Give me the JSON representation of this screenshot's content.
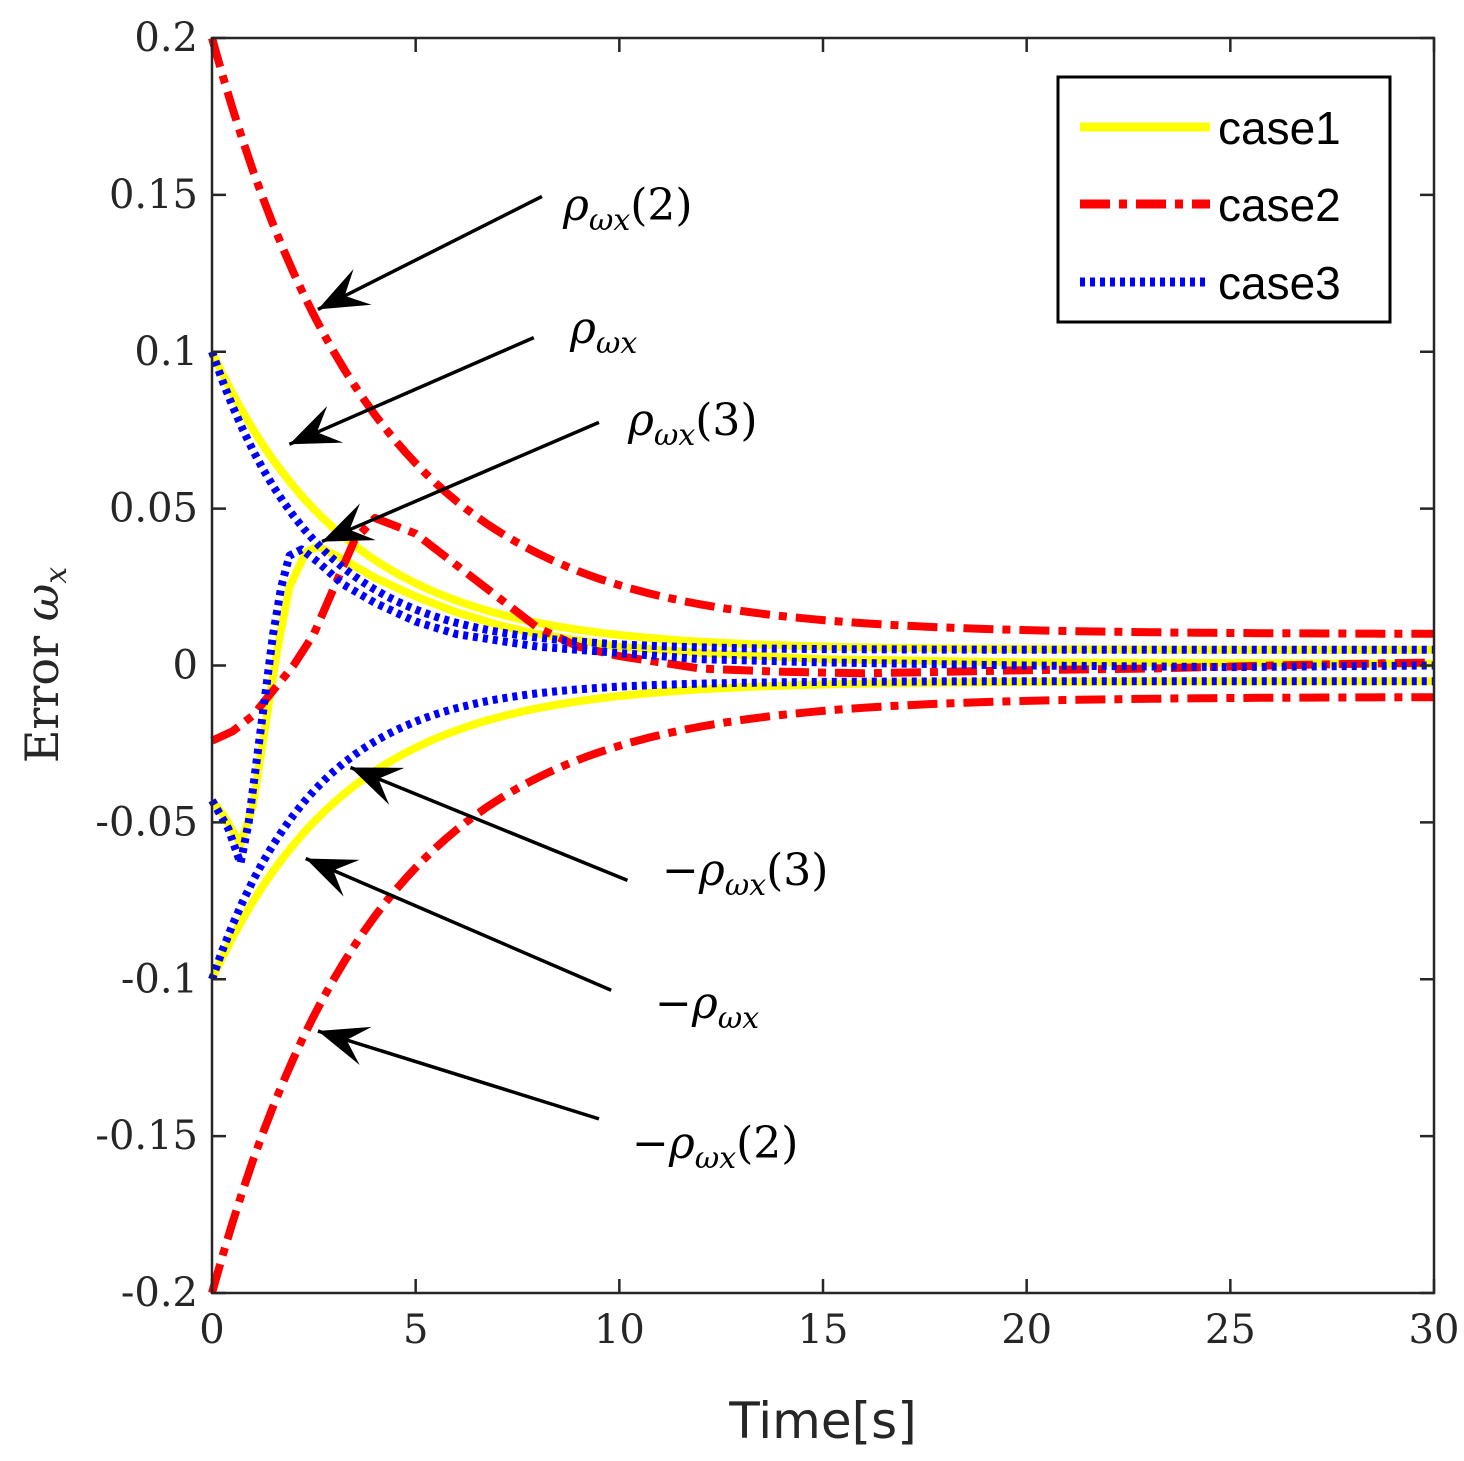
{
  "chart_data": {
    "type": "line",
    "title": "",
    "xlabel": "Time[s]",
    "ylabel": "Error ω_x",
    "ylabel_text": "Error",
    "ylabel_symbol": "ω",
    "ylabel_sub": "x",
    "xlim": [
      0,
      30
    ],
    "ylim": [
      -0.2,
      0.2
    ],
    "xticks": [
      0,
      5,
      10,
      15,
      20,
      25,
      30
    ],
    "xtick_labels": [
      "0",
      "5",
      "10",
      "15",
      "20",
      "25",
      "30"
    ],
    "yticks": [
      0.2,
      0.15,
      0.1,
      0.05,
      0,
      -0.05,
      -0.1,
      -0.15,
      -0.2
    ],
    "ytick_labels": [
      "0.2",
      "0.15",
      "0.1",
      "0.05",
      "0",
      "-0.05",
      "-0.1",
      "-0.15",
      "-0.2"
    ],
    "grid": false,
    "legend_position": "top-right",
    "series": [
      {
        "name": "case1",
        "color": "#ffff00",
        "style": "solid",
        "bound": {
          "rho0": 0.1,
          "rho_inf": 0.005,
          "rate": 0.3
        },
        "error": [
          [
            0,
            -0.043
          ],
          [
            0.3,
            -0.048
          ],
          [
            0.7,
            -0.057
          ],
          [
            1.0,
            -0.045
          ],
          [
            1.3,
            -0.02
          ],
          [
            1.6,
            0.005
          ],
          [
            1.9,
            0.025
          ],
          [
            2.3,
            0.036
          ],
          [
            2.6,
            0.038
          ],
          [
            3.2,
            0.034
          ],
          [
            4,
            0.028
          ],
          [
            5,
            0.022
          ],
          [
            6,
            0.017
          ],
          [
            7,
            0.013
          ],
          [
            8,
            0.01
          ],
          [
            10,
            0.006
          ],
          [
            12,
            0.004
          ],
          [
            15,
            0.002
          ],
          [
            20,
            0.001
          ],
          [
            25,
            0.0008
          ],
          [
            30,
            0.0005
          ]
        ]
      },
      {
        "name": "case2",
        "color": "#ff0000",
        "style": "dashdot",
        "bound": {
          "rho0": 0.2,
          "rho_inf": 0.01,
          "rate": 0.25
        },
        "error": [
          [
            0,
            -0.024
          ],
          [
            0.5,
            -0.021
          ],
          [
            1,
            -0.016
          ],
          [
            1.5,
            -0.008
          ],
          [
            2,
            0
          ],
          [
            2.5,
            0.01
          ],
          [
            3,
            0.025
          ],
          [
            3.5,
            0.04
          ],
          [
            4,
            0.047
          ],
          [
            5,
            0.042
          ],
          [
            6,
            0.032
          ],
          [
            7,
            0.022
          ],
          [
            8,
            0.012
          ],
          [
            9,
            0.006
          ],
          [
            10,
            0.003
          ],
          [
            12,
            -0.001
          ],
          [
            14,
            -0.002
          ],
          [
            16,
            -0.0025
          ],
          [
            18,
            -0.002
          ],
          [
            20,
            -0.0015
          ],
          [
            23,
            -0.001
          ],
          [
            26,
            0
          ],
          [
            28,
            0.0005
          ],
          [
            30,
            0.001
          ]
        ]
      },
      {
        "name": "case3",
        "color": "#0000ff",
        "style": "dotted",
        "bound": {
          "rho0": 0.1,
          "rho_inf": 0.005,
          "rate": 0.4
        },
        "error": [
          [
            0,
            -0.043
          ],
          [
            0.4,
            -0.052
          ],
          [
            0.7,
            -0.063
          ],
          [
            0.9,
            -0.05
          ],
          [
            1.1,
            -0.03
          ],
          [
            1.3,
            -0.01
          ],
          [
            1.5,
            0.01
          ],
          [
            1.7,
            0.025
          ],
          [
            1.9,
            0.035
          ],
          [
            2.2,
            0.037
          ],
          [
            2.6,
            0.033
          ],
          [
            3.2,
            0.026
          ],
          [
            4,
            0.02
          ],
          [
            5,
            0.014
          ],
          [
            6,
            0.01
          ],
          [
            8,
            0.006
          ],
          [
            10,
            0.004
          ],
          [
            12,
            0.002
          ],
          [
            15,
            0.001
          ],
          [
            20,
            0
          ],
          [
            25,
            -0.0005
          ],
          [
            30,
            0
          ]
        ]
      }
    ],
    "annotations": [
      {
        "sym": "ρ",
        "sub": "ωx",
        "prefix": "",
        "suffix": "(2)"
      },
      {
        "sym": "ρ",
        "sub": "ωx",
        "prefix": "",
        "suffix": ""
      },
      {
        "sym": "ρ",
        "sub": "ωx",
        "prefix": "",
        "suffix": "(3)"
      },
      {
        "sym": "ρ",
        "sub": "ωx",
        "prefix": "−",
        "suffix": "(3)"
      },
      {
        "sym": "ρ",
        "sub": "ωx",
        "prefix": "−",
        "suffix": ""
      },
      {
        "sym": "ρ",
        "sub": "ωx",
        "prefix": "−",
        "suffix": "(2)"
      }
    ]
  }
}
